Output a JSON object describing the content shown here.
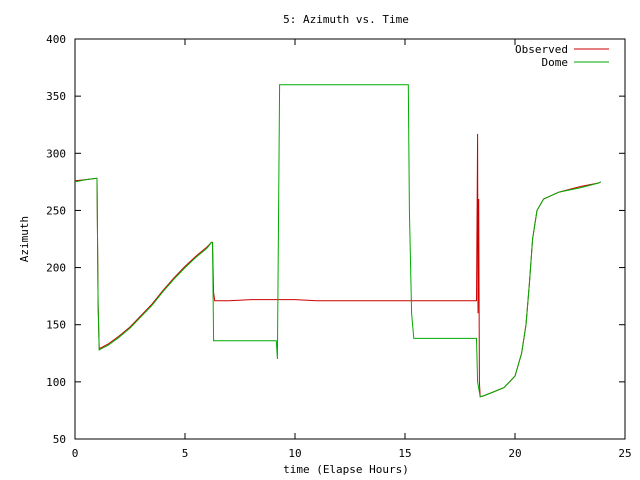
{
  "chart_data": {
    "type": "line",
    "title": "5: Azimuth vs. Time",
    "xlabel": "time (Elapse Hours)",
    "ylabel": "Azimuth",
    "xlim": [
      0,
      25
    ],
    "ylim": [
      50,
      400
    ],
    "xticks": [
      0,
      5,
      10,
      15,
      20,
      25
    ],
    "yticks": [
      50,
      100,
      150,
      200,
      250,
      300,
      350,
      400
    ],
    "grid": false,
    "legend_position": "top-right",
    "series": [
      {
        "name": "Observed",
        "color": "#cc0000",
        "points": [
          [
            0.0,
            276
          ],
          [
            0.5,
            277
          ],
          [
            0.95,
            278
          ],
          [
            1.0,
            278
          ],
          [
            1.05,
            168
          ],
          [
            1.1,
            129
          ],
          [
            1.2,
            130
          ],
          [
            1.5,
            133
          ],
          [
            2.0,
            140
          ],
          [
            2.5,
            148
          ],
          [
            3.0,
            158
          ],
          [
            3.5,
            168
          ],
          [
            4.0,
            180
          ],
          [
            4.5,
            191
          ],
          [
            5.0,
            201
          ],
          [
            5.5,
            210
          ],
          [
            6.0,
            218
          ],
          [
            6.2,
            222
          ],
          [
            6.25,
            222
          ],
          [
            6.3,
            178
          ],
          [
            6.35,
            171
          ],
          [
            7.0,
            171
          ],
          [
            8.0,
            172
          ],
          [
            9.0,
            172
          ],
          [
            10.0,
            172
          ],
          [
            11.0,
            171
          ],
          [
            12.0,
            171
          ],
          [
            13.0,
            171
          ],
          [
            14.0,
            171
          ],
          [
            15.0,
            171
          ],
          [
            16.0,
            171
          ],
          [
            17.0,
            171
          ],
          [
            18.0,
            171
          ],
          [
            18.25,
            171
          ],
          [
            18.3,
            317
          ],
          [
            18.32,
            160
          ],
          [
            18.35,
            260
          ],
          [
            18.38,
            100
          ],
          [
            18.42,
            87
          ],
          [
            18.6,
            88
          ],
          [
            19.0,
            91
          ],
          [
            19.5,
            95
          ],
          [
            20.0,
            105
          ],
          [
            20.3,
            125
          ],
          [
            20.5,
            150
          ],
          [
            20.65,
            185
          ],
          [
            20.8,
            225
          ],
          [
            21.0,
            250
          ],
          [
            21.3,
            260
          ],
          [
            22.0,
            266
          ],
          [
            23.0,
            271
          ],
          [
            23.8,
            274
          ],
          [
            23.9,
            275
          ]
        ]
      },
      {
        "name": "Dome",
        "color": "#00aa00",
        "points": [
          [
            0.0,
            275
          ],
          [
            0.5,
            277
          ],
          [
            0.95,
            278
          ],
          [
            1.0,
            278
          ],
          [
            1.05,
            168
          ],
          [
            1.1,
            128
          ],
          [
            1.2,
            129
          ],
          [
            1.5,
            132
          ],
          [
            2.0,
            139
          ],
          [
            2.5,
            147
          ],
          [
            3.0,
            157
          ],
          [
            3.5,
            167
          ],
          [
            4.0,
            179
          ],
          [
            4.5,
            190
          ],
          [
            5.0,
            200
          ],
          [
            5.5,
            209
          ],
          [
            6.0,
            217
          ],
          [
            6.2,
            222
          ],
          [
            6.25,
            222
          ],
          [
            6.3,
            136
          ],
          [
            7.0,
            136
          ],
          [
            8.0,
            136
          ],
          [
            9.0,
            136
          ],
          [
            9.15,
            136
          ],
          [
            9.2,
            120
          ],
          [
            9.3,
            360
          ],
          [
            10.0,
            360
          ],
          [
            11.0,
            360
          ],
          [
            12.0,
            360
          ],
          [
            13.0,
            360
          ],
          [
            14.0,
            360
          ],
          [
            15.0,
            360
          ],
          [
            15.15,
            360
          ],
          [
            15.2,
            250
          ],
          [
            15.3,
            160
          ],
          [
            15.4,
            138
          ],
          [
            16.0,
            138
          ],
          [
            17.0,
            138
          ],
          [
            18.0,
            138
          ],
          [
            18.25,
            138
          ],
          [
            18.3,
            100
          ],
          [
            18.42,
            87
          ],
          [
            18.6,
            88
          ],
          [
            19.0,
            91
          ],
          [
            19.5,
            95
          ],
          [
            20.0,
            105
          ],
          [
            20.3,
            125
          ],
          [
            20.5,
            150
          ],
          [
            20.65,
            185
          ],
          [
            20.8,
            225
          ],
          [
            21.0,
            250
          ],
          [
            21.3,
            260
          ],
          [
            22.0,
            266
          ],
          [
            23.0,
            270
          ],
          [
            23.8,
            274
          ],
          [
            23.9,
            275
          ]
        ]
      }
    ]
  }
}
